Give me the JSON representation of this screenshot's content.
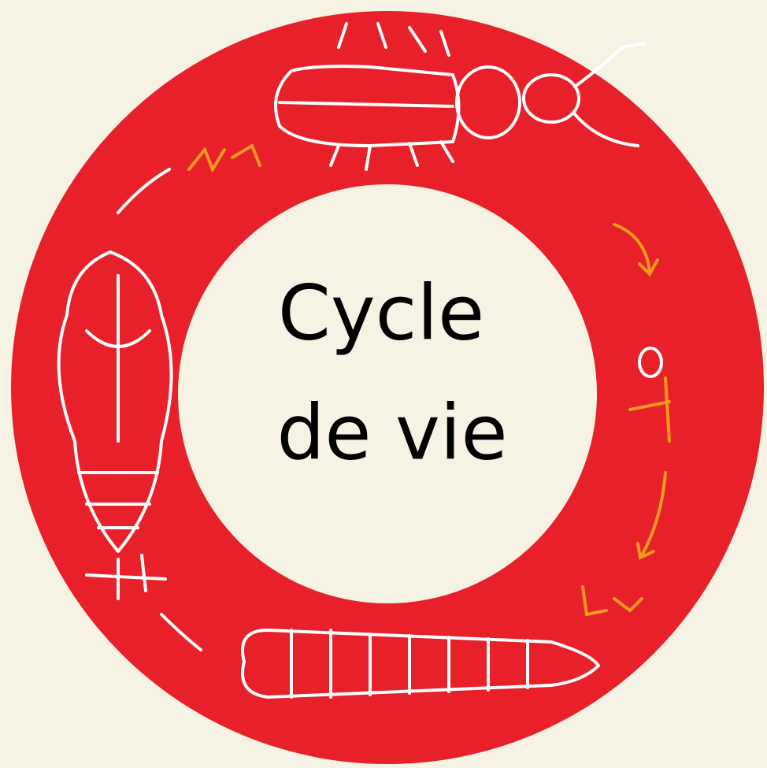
{
  "title": {
    "lines": [
      "Cycle",
      "de vie"
    ]
  }
}
